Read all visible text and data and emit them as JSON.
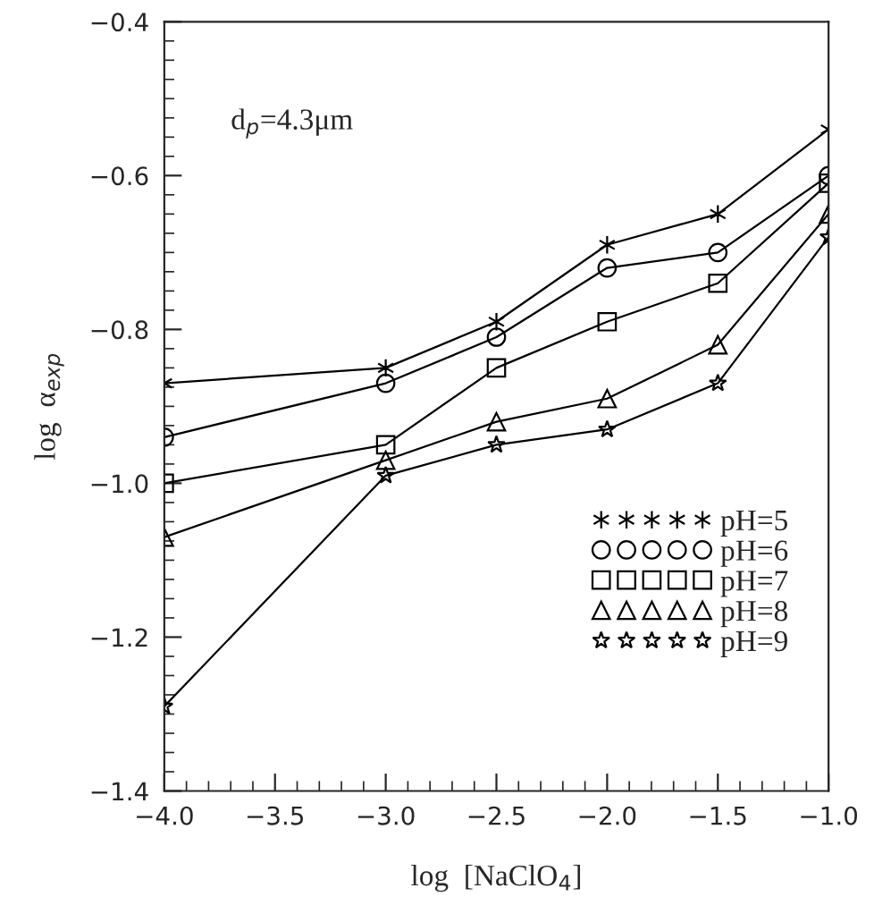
{
  "chart_data": {
    "type": "line",
    "xlabel": "log  [NaClO$_{4}$]",
    "ylabel": "log  α$_{exp}$",
    "annotations": [
      "d$_{p}$=4.3μm"
    ],
    "x": [
      -4.0,
      -3.0,
      -2.5,
      -2.0,
      -1.5,
      -1.0
    ],
    "series": [
      {
        "name": "pH=5",
        "color": "#000000",
        "marker": "cross",
        "values": [
          -0.87,
          -0.85,
          -0.79,
          -0.69,
          -0.65,
          -0.54
        ]
      },
      {
        "name": "pH=6",
        "color": "#000000",
        "marker": "circle",
        "values": [
          -0.94,
          -0.87,
          -0.81,
          -0.72,
          -0.7,
          -0.6
        ]
      },
      {
        "name": "pH=7",
        "color": "#000000",
        "marker": "square",
        "values": [
          -1.0,
          -0.95,
          -0.85,
          -0.79,
          -0.74,
          -0.61
        ]
      },
      {
        "name": "pH=8",
        "color": "#000000",
        "marker": "triangle",
        "values": [
          -1.07,
          -0.97,
          -0.92,
          -0.89,
          -0.82,
          -0.65
        ]
      },
      {
        "name": "pH=9",
        "color": "#000000",
        "marker": "star",
        "values": [
          -1.29,
          -0.99,
          -0.95,
          -0.93,
          -0.87,
          -0.68
        ]
      }
    ],
    "xlim": [
      -4.0,
      -1.0
    ],
    "xticks": [
      {
        "value": -4.0,
        "label": "−4.0"
      },
      {
        "value": -3.5,
        "label": "−3.5"
      },
      {
        "value": -3.0,
        "label": "−3.0"
      },
      {
        "value": -2.5,
        "label": "−2.5"
      },
      {
        "value": -2.0,
        "label": "−2.0"
      },
      {
        "value": -1.5,
        "label": "−1.5"
      },
      {
        "value": -1.0,
        "label": "−1.0"
      }
    ],
    "ylim": [
      -1.4,
      -0.4
    ],
    "yticks": [
      {
        "value": -1.4,
        "label": "−1.4"
      },
      {
        "value": -1.2,
        "label": "−1.2"
      },
      {
        "value": -1.0,
        "label": "−1.0"
      },
      {
        "value": -0.8,
        "label": "−0.8"
      },
      {
        "value": -0.6,
        "label": "−0.6"
      },
      {
        "value": -0.4,
        "label": "−0.4"
      }
    ],
    "grid": false,
    "legend": "right",
    "line_style": "solid"
  }
}
